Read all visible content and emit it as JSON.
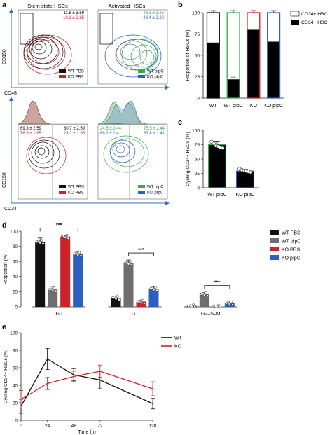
{
  "panel_a": {
    "letter": "a",
    "titles": [
      "Stem state HSCs",
      "Activated HSCs"
    ],
    "top": {
      "ylabel": "CD150",
      "xlabel": "CD48",
      "stats_left": [
        "11.8 ± 3.59",
        "10.1 ± 2.85"
      ],
      "stats_right": [
        "4.53 ± 1.25",
        "4.84 ± 2.20"
      ],
      "legend_left": [
        "WT PBS",
        "KO PBS"
      ],
      "legend_right": [
        "WT pIpC",
        "KO pIpC"
      ]
    },
    "bottom": {
      "ylabel": "CD150",
      "xlabel": "CD34",
      "stats_left_l": [
        "69.3 ± 2.59",
        "76.8 ± 1.95"
      ],
      "stats_left_r": [
        "30.7 ± 2.59",
        "23.2 ± 1.95"
      ],
      "stats_right_l": [
        "24.5 ± 2.44",
        "66.2 ± 1.41"
      ],
      "stats_right_r": [
        "75.5 ± 2.44",
        "33.8 ± 1.41"
      ],
      "legend_left": [
        "WT PBS",
        "KO PBS"
      ],
      "legend_right": [
        "WT pIpC",
        "KO pIpC"
      ]
    },
    "colors": {
      "wt_pbs": "#111111",
      "ko_pbs": "#cc2229",
      "wt_pipc": "#2fae4a",
      "ko_pipc": "#2c5fbf"
    }
  },
  "chart_data": [
    {
      "panel": "b",
      "type": "bar",
      "stacked": true,
      "categories": [
        "WT",
        "WT pIpC",
        "KO",
        "KO pIpC"
      ],
      "series": [
        {
          "name": "CD34+ HSC",
          "values": [
            35,
            78,
            20,
            34
          ]
        },
        {
          "name": "CD34− HSC",
          "values": [
            65,
            22,
            80,
            66
          ]
        }
      ],
      "ylabel": "Proportion of HSCs (%)",
      "ylim": [
        0,
        100
      ],
      "yticks": [
        0,
        25,
        50,
        75,
        100
      ],
      "outline_colors": [
        "#111111",
        "#2fae4a",
        "#cc2229",
        "#2c5fbf"
      ],
      "legend_position": "right"
    },
    {
      "panel": "c",
      "type": "bar",
      "categories": [
        "WT pIpC",
        "KO pIpC"
      ],
      "values": [
        75,
        29
      ],
      "errors": [
        5,
        3
      ],
      "points": [
        [
          80,
          77,
          73,
          72,
          70,
          69
        ],
        [
          33,
          31,
          30,
          29,
          28,
          27
        ]
      ],
      "ylabel": "Cycling CD34− HSCs (%)",
      "ylim": [
        0,
        100
      ],
      "yticks": [
        0,
        25,
        50,
        75,
        100
      ],
      "outline_colors": [
        "#2fae4a",
        "#2c5fbf"
      ]
    },
    {
      "panel": "d",
      "type": "bar",
      "categories": [
        "G0",
        "G1",
        "G2–S–M"
      ],
      "series": [
        {
          "name": "WT PBS",
          "color": "#111111",
          "values": [
            86,
            12,
            1
          ],
          "errors": [
            5,
            5,
            0.5
          ]
        },
        {
          "name": "WT pIpC",
          "color": "#6e6e6e",
          "values": [
            23,
            58,
            17
          ],
          "errors": [
            4,
            4,
            2
          ]
        },
        {
          "name": "KO PBS",
          "color": "#cc2229",
          "values": [
            93,
            7,
            0.5
          ],
          "errors": [
            2,
            2,
            0.3
          ]
        },
        {
          "name": "KO pIpC",
          "color": "#2c5fbf",
          "values": [
            70,
            24,
            5
          ],
          "errors": [
            3,
            3,
            1.5
          ]
        }
      ],
      "ylabel": "Proportion (%)",
      "ylim": [
        0,
        100
      ],
      "yticks": [
        0,
        20,
        40,
        60,
        80,
        100
      ],
      "significance": [
        "***",
        "***",
        "***"
      ],
      "legend_position": "right"
    },
    {
      "panel": "e",
      "type": "line",
      "x": [
        0,
        24,
        48,
        72,
        120
      ],
      "series": [
        {
          "name": "WT",
          "color": "#111111",
          "y": [
            16,
            70,
            52,
            46,
            19
          ],
          "errors": [
            8,
            12,
            7,
            10,
            6
          ]
        },
        {
          "name": "KO",
          "color": "#cc2229",
          "y": [
            24,
            42,
            50,
            56,
            36
          ],
          "errors": [
            10,
            7,
            6,
            7,
            8
          ]
        }
      ],
      "xlabel": "Time (h)",
      "ylabel": "Cycling CD34− HSCs (%)",
      "xlim": [
        0,
        120
      ],
      "ylim": [
        0,
        100
      ],
      "xticks": [
        0,
        24,
        48,
        72,
        120
      ],
      "yticks": [
        0,
        20,
        40,
        60,
        80,
        100
      ],
      "legend_position": "top-right"
    }
  ],
  "letters": {
    "b": "b",
    "c": "c",
    "d": "d",
    "e": "e"
  }
}
